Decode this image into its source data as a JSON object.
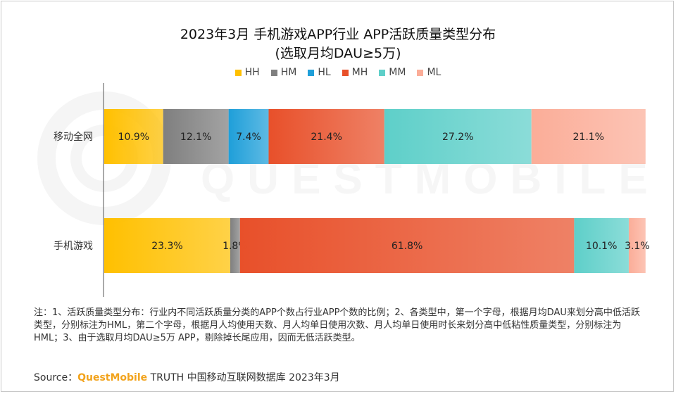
{
  "title_line1": "2023年3月 手机游戏APP行业 APP活跃质量类型分布",
  "title_line2": "(选取月均DAU≥5万)",
  "watermark_text": "QUESTMOBILE",
  "note": "注：1、活跃质量类型分布：行业内不同活跃质量分类的APP个数占行业APP个数的比例；2、各类型中，第一个字母，根据月均DAU来划分高中低活跃类型，分别标注为HML，第二个字母，根据月人均使用天数、月人均单日使用次数、月人均单日使用时长来划分高中低粘性质量类型，分别标注为HML；3、由于选取月均DAU≥5万 APP，剔除掉长尾应用，因而无低活跃类型。",
  "source": {
    "prefix": "Source：",
    "brand": "QuestMobile",
    "suffix": " TRUTH 中国移动互联网数据库 2023年3月"
  },
  "chart_data": {
    "type": "bar",
    "orientation": "horizontal",
    "stacked": true,
    "normalized": true,
    "categories": [
      "移动全网",
      "手机游戏"
    ],
    "series": [
      {
        "name": "HH",
        "values": [
          10.9,
          23.3
        ],
        "labels": [
          "10.9%",
          "23.3%"
        ],
        "color": "#ffc000"
      },
      {
        "name": "HM",
        "values": [
          12.1,
          1.8
        ],
        "labels": [
          "12.1%",
          "1.8%"
        ],
        "color": "#7f7f7f"
      },
      {
        "name": "HL",
        "values": [
          7.4,
          0.0
        ],
        "labels": [
          "7.4%",
          ""
        ],
        "color": "#1f9fd9"
      },
      {
        "name": "MH",
        "values": [
          21.4,
          61.8
        ],
        "labels": [
          "21.4%",
          "61.8%"
        ],
        "color": "#e8502a"
      },
      {
        "name": "MM",
        "values": [
          27.2,
          10.1
        ],
        "labels": [
          "27.2%",
          "10.1%"
        ],
        "color": "#5ecfc9"
      },
      {
        "name": "ML",
        "values": [
          21.1,
          3.1
        ],
        "labels": [
          "21.1%",
          "3.1%"
        ],
        "color": "#fbad98"
      }
    ],
    "legend_position": "top",
    "grid": false,
    "xlim": [
      0,
      100
    ]
  }
}
